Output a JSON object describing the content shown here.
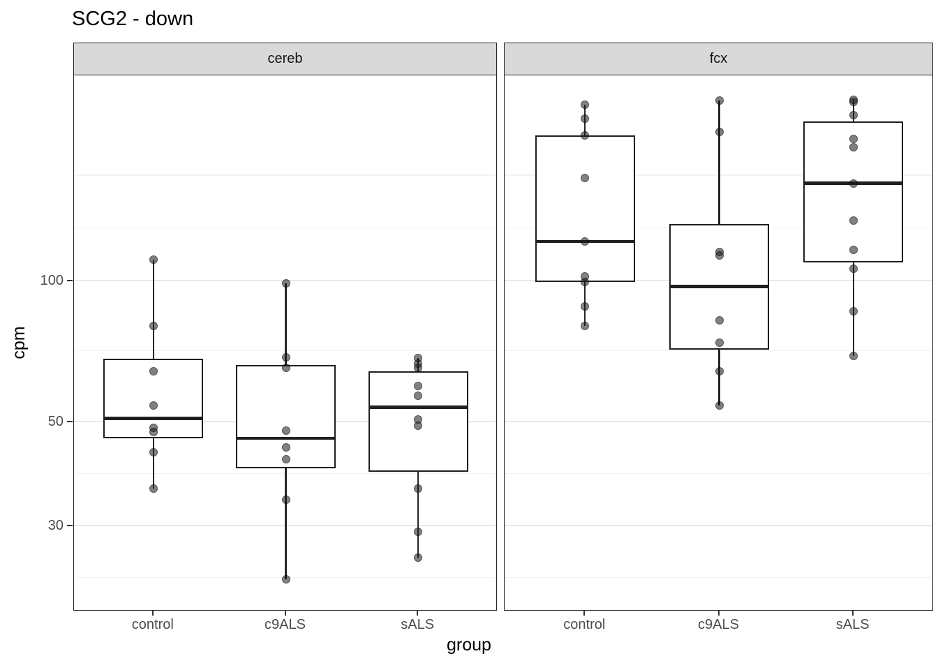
{
  "title": "SCG2 - down",
  "colors": {
    "background": "#ffffff",
    "panel_border": "#262626",
    "strip_background": "#d9d9d9",
    "grid_major": "#e9e9e9",
    "grid_minor": "#f2f2f2",
    "box_stroke": "#1f1f1f",
    "point_fill": "rgba(25,25,25,0.55)",
    "axis_tick": "#333333",
    "tick_label_color": "#4d4d4d",
    "text_color": "#000000"
  },
  "chart_data": {
    "type": "boxplot",
    "title": "SCG2 - down",
    "xlabel": "group",
    "ylabel": "cpm",
    "y_scale": "log10",
    "y_domain": [
      19.9,
      274
    ],
    "y_ticks": [
      100,
      50,
      30
    ],
    "y_minor_gridlines": [
      167.4,
      129.4,
      70.7,
      38.7,
      23.2
    ],
    "grid": true,
    "legend": "none",
    "categories": [
      "control",
      "c9ALS",
      "sALS"
    ],
    "facets": [
      {
        "label": "cereb",
        "groups": [
          {
            "name": "control",
            "stats": {
              "min": 36,
              "q1": 46,
              "median": 50.7,
              "q3": 68,
              "max": 110.5
            },
            "points": [
              110.5,
              80,
              64,
              54,
              48.5,
              47.5,
              43,
              36
            ]
          },
          {
            "name": "c9ALS",
            "stats": {
              "min": 23,
              "q1": 39.7,
              "median": 46,
              "q3": 66,
              "max": 98.5
            },
            "points": [
              98.5,
              68.5,
              65,
              47.7,
              44,
              41.5,
              34,
              23
            ]
          },
          {
            "name": "sALS",
            "stats": {
              "min": 25.6,
              "q1": 39,
              "median": 53.6,
              "q3": 64,
              "max": 68.3
            },
            "points": [
              68.3,
              66.3,
              65,
              59.5,
              56.8,
              50.4,
              49,
              36,
              29.1,
              25.6
            ]
          }
        ]
      },
      {
        "label": "fcx",
        "groups": [
          {
            "name": "control",
            "stats": {
              "min": 80,
              "q1": 99,
              "median": 121,
              "q3": 204,
              "max": 237
            },
            "points": [
              237,
              221,
              204,
              165,
              121,
              102,
              99,
              88,
              80
            ]
          },
          {
            "name": "c9ALS",
            "stats": {
              "min": 54,
              "q1": 71,
              "median": 97,
              "q3": 132,
              "max": 242
            },
            "points": [
              242,
              207,
              115,
              113,
              82,
              73.5,
              64,
              54
            ]
          },
          {
            "name": "sALS",
            "stats": {
              "min": 69,
              "q1": 109,
              "median": 161,
              "q3": 218,
              "max": 243
            },
            "points": [
              243,
              240,
              225,
              200,
              192,
              161,
              134,
              116,
              106,
              86,
              69
            ]
          }
        ]
      }
    ]
  }
}
